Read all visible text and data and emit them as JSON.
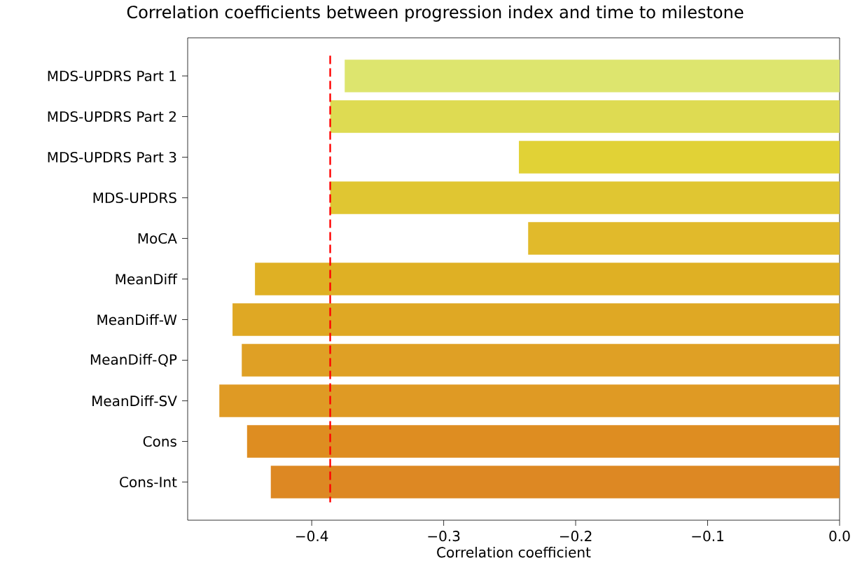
{
  "chart_data": {
    "type": "bar",
    "orientation": "horizontal",
    "title": "Correlation coefficients between progression index and time to milestone",
    "xlabel": "Correlation coefficient",
    "categories": [
      "MDS-UPDRS Part 1",
      "MDS-UPDRS Part 2",
      "MDS-UPDRS Part 3",
      "MDS-UPDRS",
      "MoCA",
      "MeanDiff",
      "MeanDiff-W",
      "MeanDiff-QP",
      "MeanDiff-SV",
      "Cons",
      "Cons-Int"
    ],
    "values": [
      -0.375,
      -0.386,
      -0.243,
      -0.386,
      -0.236,
      -0.443,
      -0.46,
      -0.453,
      -0.47,
      -0.449,
      -0.431
    ],
    "colors": [
      "#dde56e",
      "#dedb52",
      "#e1d236",
      "#e0c632",
      "#e1ba2b",
      "#dfb024",
      "#dfa824",
      "#dfa025",
      "#df9a24",
      "#de8d21",
      "#dd8823"
    ],
    "xlim": [
      -0.494,
      0.0
    ],
    "xticks": [
      {
        "value": -0.4,
        "label": "−0.4"
      },
      {
        "value": -0.3,
        "label": "−0.3"
      },
      {
        "value": -0.2,
        "label": "−0.2"
      },
      {
        "value": -0.1,
        "label": "−0.1"
      },
      {
        "value": 0.0,
        "label": "0.0"
      }
    ],
    "ref_lines": [
      {
        "axis": "x",
        "value": -0.386,
        "color": "#ff0000",
        "line_style": "dashed"
      }
    ],
    "grid": false
  }
}
